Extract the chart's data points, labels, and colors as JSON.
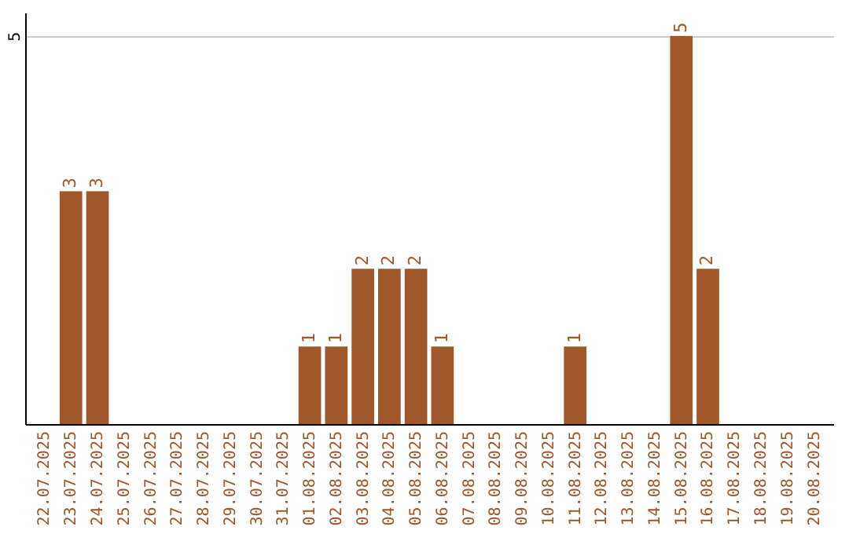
{
  "chart_data": {
    "type": "bar",
    "categories": [
      "22.07.2025",
      "23.07.2025",
      "24.07.2025",
      "25.07.2025",
      "26.07.2025",
      "27.07.2025",
      "28.07.2025",
      "29.07.2025",
      "30.07.2025",
      "31.07.2025",
      "01.08.2025",
      "02.08.2025",
      "03.08.2025",
      "04.08.2025",
      "05.08.2025",
      "06.08.2025",
      "07.08.2025",
      "08.08.2025",
      "09.08.2025",
      "10.08.2025",
      "11.08.2025",
      "12.08.2025",
      "13.08.2025",
      "14.08.2025",
      "15.08.2025",
      "16.08.2025",
      "17.08.2025",
      "18.08.2025",
      "19.08.2025",
      "20.08.2025"
    ],
    "values": [
      0,
      3,
      3,
      0,
      0,
      0,
      0,
      0,
      0,
      0,
      1,
      1,
      2,
      2,
      2,
      1,
      0,
      0,
      0,
      0,
      1,
      0,
      0,
      0,
      5,
      2,
      0,
      0,
      0,
      0
    ],
    "value_labels": [
      null,
      "3",
      "3",
      null,
      null,
      null,
      null,
      null,
      null,
      null,
      "1",
      "1",
      "2",
      "2",
      "2",
      "1",
      null,
      null,
      null,
      null,
      "1",
      null,
      null,
      null,
      "5",
      "2",
      null,
      null,
      null,
      null
    ],
    "color": "#a0572a",
    "ylim": [
      0,
      5.3
    ],
    "yticks": [
      5
    ],
    "grid": "y"
  }
}
